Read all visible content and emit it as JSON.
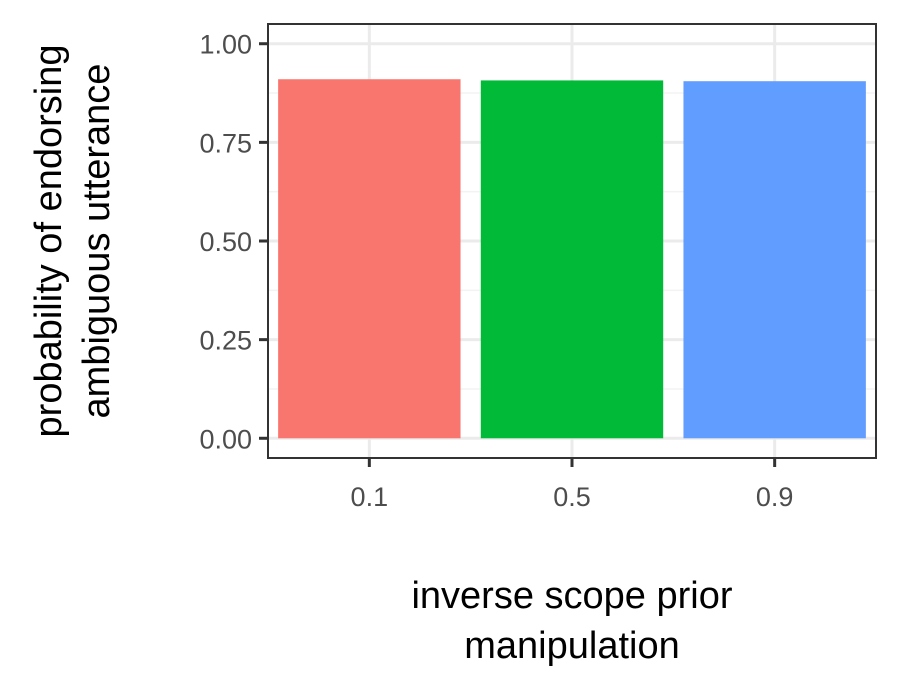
{
  "chart_data": {
    "type": "bar",
    "title": "",
    "xlabel_lines": [
      "inverse scope prior",
      "manipulation"
    ],
    "ylabel_lines": [
      "probability of endorsing",
      "ambiguous utterance"
    ],
    "categories": [
      "0.1",
      "0.5",
      "0.9"
    ],
    "values": [
      0.91,
      0.907,
      0.905
    ],
    "ylim": [
      -0.05,
      1.05
    ],
    "yticks": [
      0,
      0.25,
      0.5,
      0.75,
      1.0
    ],
    "ytick_labels": [
      "0.00",
      "0.25",
      "0.50",
      "0.75",
      "1.00"
    ],
    "grid": true,
    "legend": "none"
  },
  "colors": {
    "bars": [
      "#F8766D",
      "#00BA38",
      "#619CFF"
    ],
    "grid_major": "#ebebeb",
    "grid_minor": "#f3f3f3",
    "panel_border": "#333333",
    "tick_text": "#4d4d4d"
  }
}
